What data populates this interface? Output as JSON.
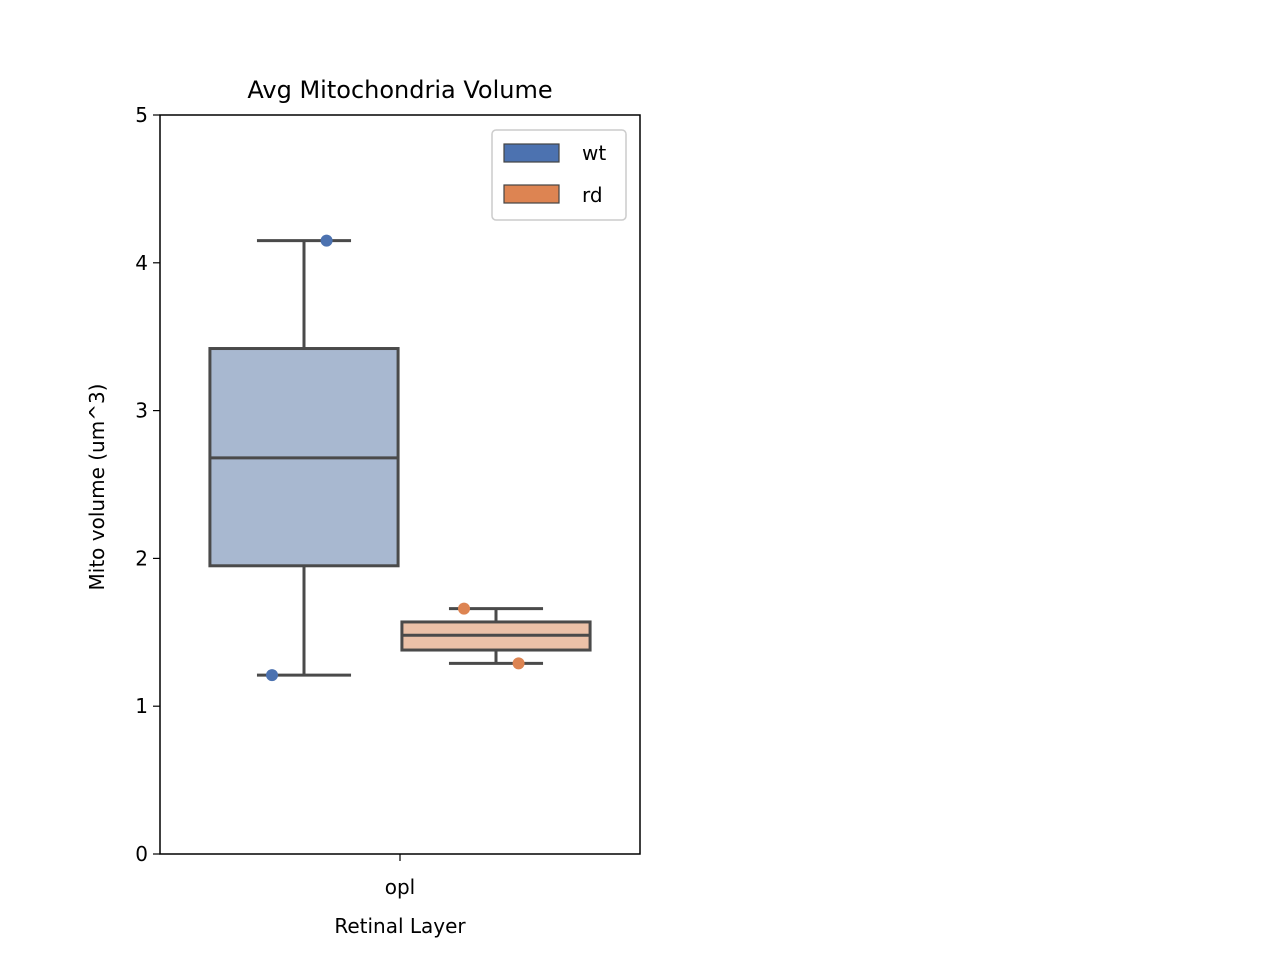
{
  "chart_data": {
    "type": "box",
    "title": "Avg Mitochondria Volume",
    "xlabel": "Retinal Layer",
    "ylabel": "Mito volume (um^3)",
    "categories": [
      "opl"
    ],
    "ylim": [
      0,
      5
    ],
    "yticks": [
      "0",
      "1",
      "2",
      "3",
      "4",
      "5"
    ],
    "grid": false,
    "legend_position": "upper-right",
    "series": [
      {
        "name": "wt",
        "color": "#4c72b0",
        "box_fill": "#a8b8d0",
        "box": {
          "whisker_low": 1.21,
          "q1": 1.95,
          "median": 2.68,
          "q3": 3.42,
          "whisker_high": 4.15
        },
        "points": [
          1.21,
          4.15
        ]
      },
      {
        "name": "rd",
        "color": "#dd8452",
        "box_fill": "#ebc1a8",
        "box": {
          "whisker_low": 1.29,
          "q1": 1.38,
          "median": 1.48,
          "q3": 1.57,
          "whisker_high": 1.66
        },
        "points": [
          1.66,
          1.29
        ]
      }
    ]
  }
}
